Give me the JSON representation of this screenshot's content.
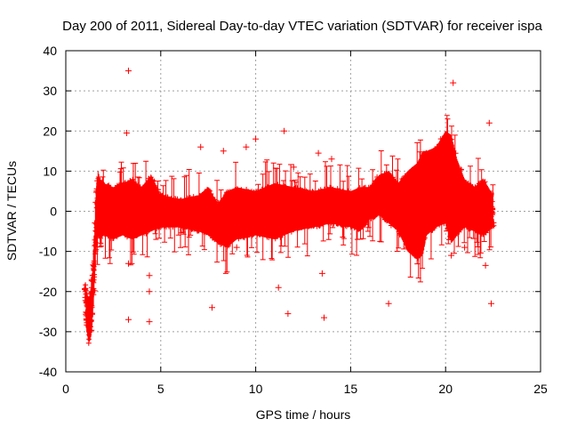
{
  "colors": {
    "background": "#ffffff",
    "data": "#ff0000",
    "grid": "#a0a0a0",
    "axis": "#000000"
  },
  "chart_data": {
    "type": "scatter",
    "title": "Day 200 of 2011, Sidereal Day-to-day VTEC variation (SDTVAR) for receiver ispa",
    "xlabel": "GPS time / hours",
    "ylabel": "SDTVAR / TECUs",
    "xlim": [
      0,
      25
    ],
    "ylim": [
      -40,
      40
    ],
    "xticks": [
      0,
      5,
      10,
      15,
      20,
      25
    ],
    "yticks": [
      -40,
      -30,
      -20,
      -10,
      0,
      10,
      20,
      30,
      40
    ],
    "xtick_labels": [
      "0",
      "5",
      "10",
      "15",
      "20",
      "25"
    ],
    "ytick_labels": [
      "-40",
      "-30",
      "-20",
      "-10",
      "0",
      "10",
      "20",
      "30",
      "40"
    ],
    "grid": true,
    "marker": "+",
    "series": [
      {
        "name": "SDTVAR",
        "color": "#ff0000",
        "envelope_x": [
          1.0,
          1.1,
          1.2,
          1.3,
          1.4,
          1.5,
          1.6,
          1.7,
          1.8,
          2.0,
          2.5,
          3.0,
          3.5,
          4.0,
          4.5,
          5.0,
          6.0,
          7.0,
          7.5,
          8.0,
          8.5,
          9.0,
          10.0,
          11.0,
          12.0,
          13.0,
          14.0,
          15.0,
          15.5,
          16.0,
          16.5,
          17.0,
          17.5,
          18.0,
          18.5,
          18.8,
          19.0,
          19.5,
          20.0,
          20.3,
          20.6,
          21.0,
          21.5,
          22.0,
          22.5
        ],
        "envelope_upper": [
          -18,
          -20,
          -22,
          -20,
          -15,
          -5,
          6,
          10,
          8,
          7,
          6,
          7,
          8,
          6,
          9,
          4,
          3,
          4,
          6,
          2,
          5,
          6,
          5,
          7,
          6,
          5,
          6,
          5,
          6,
          6,
          9,
          10,
          7,
          10,
          12,
          15,
          15,
          16,
          20,
          19,
          13,
          8,
          6,
          8,
          4
        ],
        "envelope_lower": [
          -20,
          -30,
          -33,
          -32,
          -28,
          -20,
          -10,
          -6,
          -7,
          -6,
          -7,
          -6,
          -7,
          -6,
          -5,
          -4,
          -4,
          -5,
          -6,
          -8,
          -9,
          -7,
          -6,
          -7,
          -5,
          -4,
          -3,
          -4,
          -5,
          -2,
          -1,
          -3,
          -5,
          -10,
          -12,
          -11,
          -6,
          -4,
          -3,
          -8,
          -6,
          -4,
          -5,
          -6,
          -4
        ],
        "outliers": [
          [
            3.3,
            35
          ],
          [
            20.4,
            32
          ],
          [
            3.2,
            19.5
          ],
          [
            11.5,
            20
          ],
          [
            22.3,
            22
          ],
          [
            10.0,
            18
          ],
          [
            9.5,
            16
          ],
          [
            7.1,
            16
          ],
          [
            13.3,
            14.5
          ],
          [
            8.3,
            15
          ],
          [
            12.0,
            11
          ],
          [
            14.0,
            13
          ],
          [
            3.3,
            -27
          ],
          [
            4.4,
            -27.5
          ],
          [
            7.7,
            -24
          ],
          [
            11.7,
            -25.5
          ],
          [
            13.6,
            -26.5
          ],
          [
            17.0,
            -23
          ],
          [
            4.4,
            -20
          ],
          [
            4.4,
            -16
          ],
          [
            11.2,
            -19
          ],
          [
            13.5,
            -15.5
          ],
          [
            22.4,
            -23
          ],
          [
            22.1,
            -13.5
          ],
          [
            20.3,
            -11
          ],
          [
            21.0,
            -9
          ],
          [
            3.3,
            -13
          ],
          [
            9.0,
            -9
          ]
        ]
      }
    ]
  }
}
